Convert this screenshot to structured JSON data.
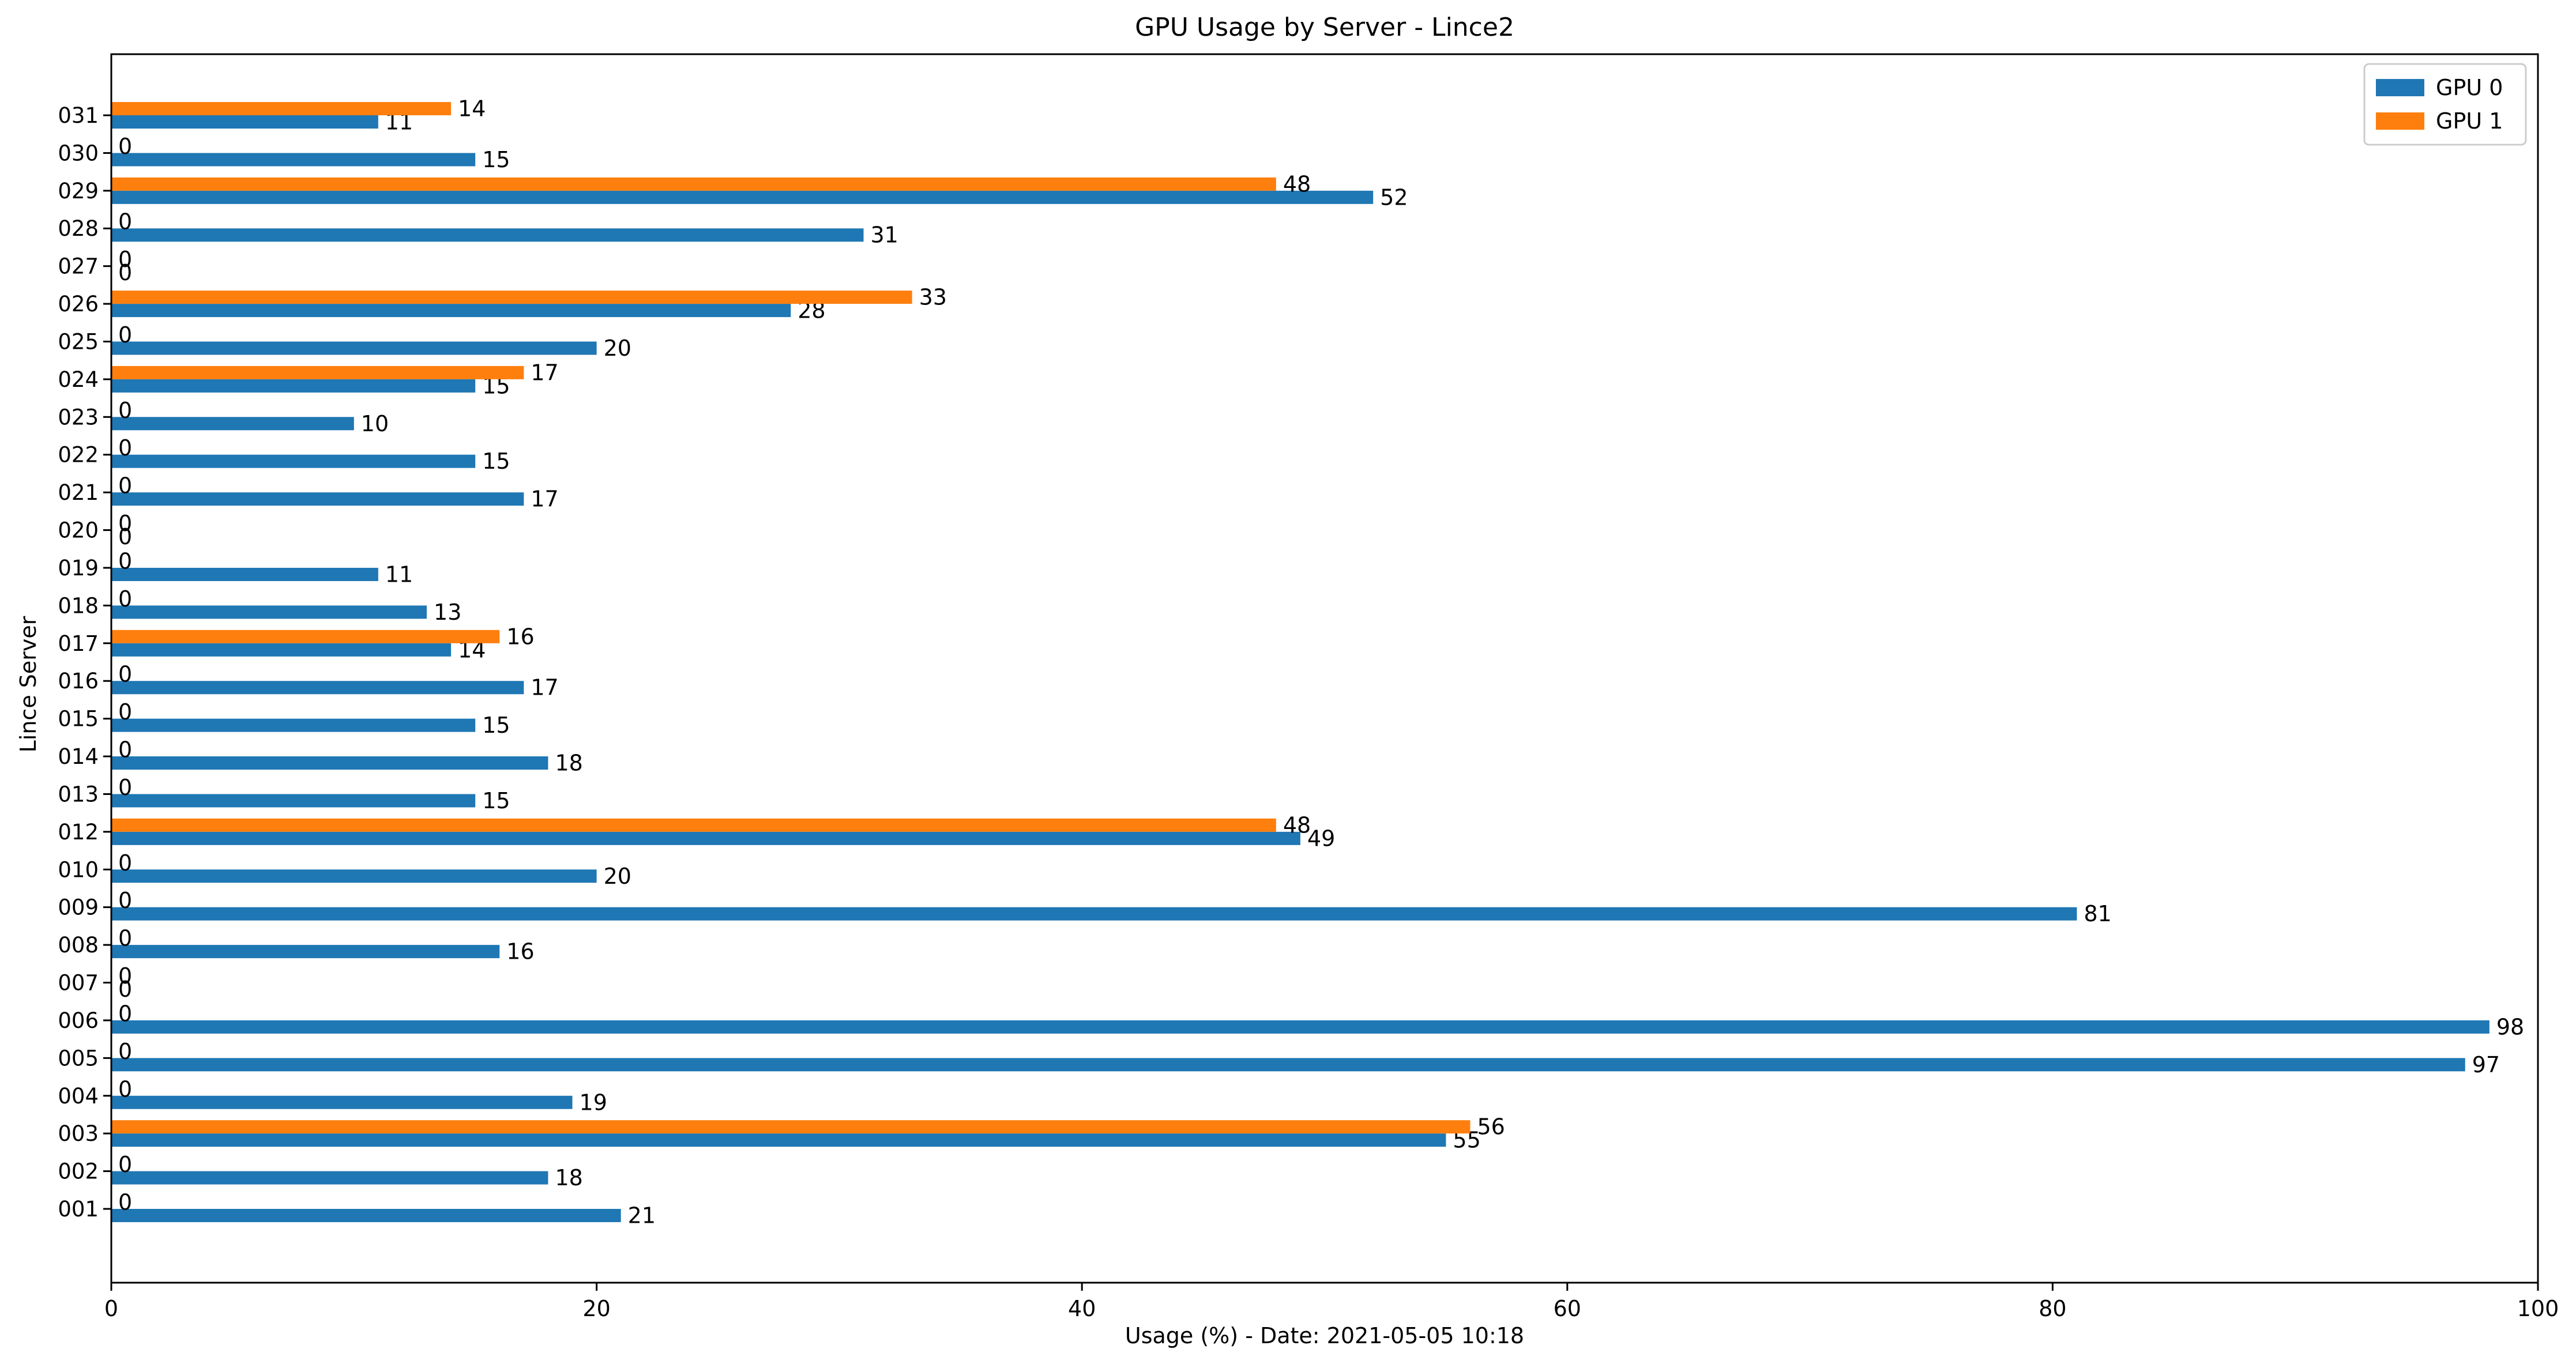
{
  "chart_data": {
    "type": "bar",
    "orientation": "horizontal",
    "title": "GPU Usage by Server - Lince2",
    "xlabel": "Usage (%) - Date: 2021-05-05 10:18",
    "ylabel": "Lince Server",
    "xlim": [
      0,
      100
    ],
    "xticks": [
      "0",
      "20",
      "40",
      "60",
      "80",
      "100"
    ],
    "grid": false,
    "legend_position": "top-right",
    "categories": [
      "001",
      "002",
      "003",
      "004",
      "005",
      "006",
      "007",
      "008",
      "009",
      "010",
      "012",
      "013",
      "014",
      "015",
      "016",
      "017",
      "018",
      "019",
      "020",
      "021",
      "022",
      "023",
      "024",
      "025",
      "026",
      "027",
      "028",
      "029",
      "030",
      "031"
    ],
    "series": [
      {
        "name": "GPU 0",
        "color": "#1f77b4",
        "values": [
          21,
          18,
          55,
          19,
          97,
          98,
          0,
          16,
          81,
          20,
          49,
          15,
          18,
          15,
          17,
          14,
          13,
          11,
          0,
          17,
          15,
          10,
          15,
          20,
          28,
          0,
          31,
          52,
          15,
          11
        ]
      },
      {
        "name": "GPU 1",
        "color": "#ff7f0e",
        "values": [
          0,
          0,
          56,
          0,
          0,
          0,
          0,
          0,
          0,
          0,
          48,
          0,
          0,
          0,
          0,
          16,
          0,
          0,
          0,
          0,
          0,
          0,
          17,
          0,
          33,
          0,
          0,
          48,
          0,
          14
        ]
      }
    ]
  }
}
